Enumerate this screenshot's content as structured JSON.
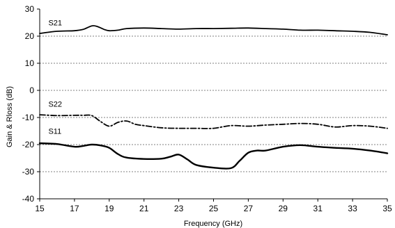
{
  "chart_data": {
    "type": "line",
    "title": "",
    "xlabel": "Frequency (GHz)",
    "ylabel": "Gain & Rloss  (dB)",
    "xlim": [
      15,
      35
    ],
    "ylim": [
      -40,
      30
    ],
    "xticks": [
      15,
      17,
      19,
      21,
      23,
      25,
      27,
      29,
      31,
      33,
      35
    ],
    "yticks": [
      30,
      20,
      10,
      0,
      -10,
      -20,
      -30,
      -40
    ],
    "grid": true,
    "series": [
      {
        "name": "S21",
        "style": "solid",
        "x": [
          15,
          16,
          17,
          17.5,
          18,
          18.3,
          18.7,
          19,
          19.5,
          20,
          21,
          22,
          23,
          24,
          25,
          26,
          27,
          28,
          29,
          30,
          31,
          32,
          33,
          34,
          35
        ],
        "y": [
          21,
          21.8,
          22,
          22.5,
          23.8,
          23.6,
          22.5,
          22,
          22.2,
          22.8,
          23,
          22.8,
          22.6,
          22.8,
          22.8,
          22.9,
          23,
          22.8,
          22.6,
          22.2,
          22.2,
          22,
          21.8,
          21.4,
          20.5
        ]
      },
      {
        "name": "S22",
        "style": "dashdot",
        "x": [
          15,
          16,
          17,
          17.5,
          18,
          18.5,
          19,
          19.5,
          20,
          20.5,
          21,
          22,
          23,
          24,
          25,
          26,
          27,
          28,
          29,
          30,
          31,
          32,
          33,
          34,
          35
        ],
        "y": [
          -9,
          -9.3,
          -9.2,
          -9.2,
          -9.3,
          -11.5,
          -13.2,
          -11.8,
          -11.3,
          -12.5,
          -13,
          -13.8,
          -14,
          -14,
          -14,
          -13,
          -13.2,
          -12.8,
          -12.5,
          -12.2,
          -12.5,
          -13.5,
          -13,
          -13.2,
          -14
        ]
      },
      {
        "name": "S11",
        "style": "solid-thick",
        "x": [
          15,
          16,
          17,
          17.5,
          18,
          18.5,
          19,
          19.5,
          20,
          21,
          22,
          22.5,
          23,
          23.5,
          24,
          25,
          26,
          26.5,
          27,
          27.5,
          28,
          29,
          30,
          31,
          32,
          33,
          34,
          35
        ],
        "y": [
          -19.5,
          -19.8,
          -20.8,
          -20.5,
          -20,
          -20.3,
          -21.2,
          -23.5,
          -24.8,
          -25.3,
          -25.2,
          -24.5,
          -23.7,
          -25.5,
          -27.5,
          -28.5,
          -28.7,
          -26,
          -23,
          -22.2,
          -22.2,
          -20.8,
          -20.2,
          -20.8,
          -21.2,
          -21.5,
          -22.2,
          -23.2
        ]
      }
    ],
    "series_labels": [
      {
        "text": "S21",
        "x": 15.5,
        "y": 25
      },
      {
        "text": "S22",
        "x": 15.5,
        "y": -5
      },
      {
        "text": "S11",
        "x": 15.5,
        "y": -15
      }
    ]
  }
}
